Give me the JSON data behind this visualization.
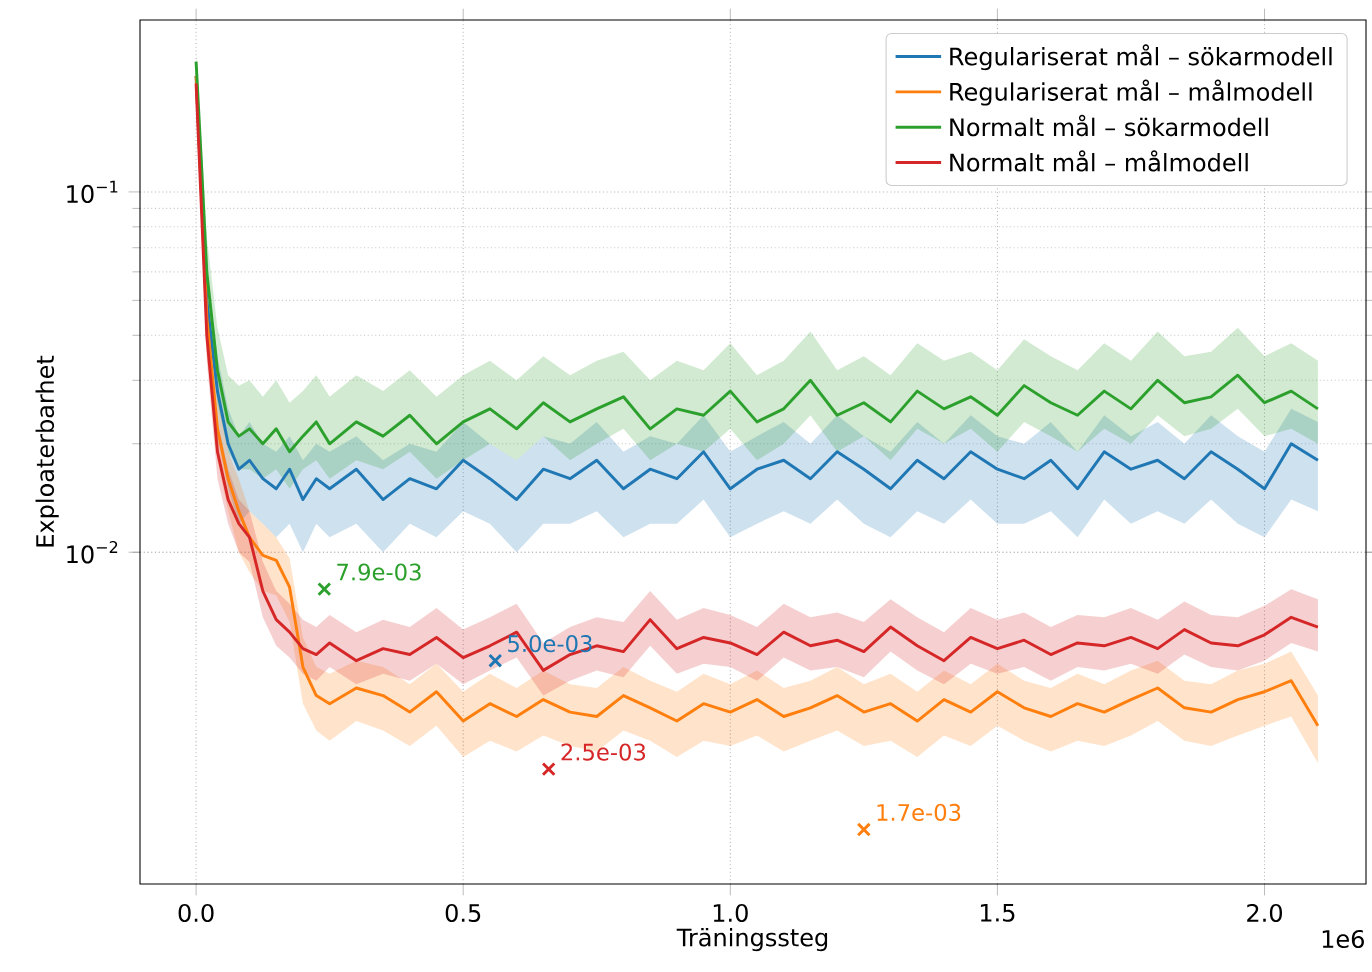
{
  "chart_data": {
    "type": "line",
    "xlabel": "Träningssteg",
    "ylabel": "Exploaterbarhet",
    "log": "y",
    "grid": true,
    "legend": "top right",
    "xlim": [
      -0.105,
      2.19
    ],
    "ylim": [
      0.0012,
      0.3
    ],
    "xticks": [
      {
        "value": 0,
        "label": "0.0"
      },
      {
        "value": 0.5,
        "label": "0.5"
      },
      {
        "value": 1.0,
        "label": "1.0"
      },
      {
        "value": 1.5,
        "label": "1.5"
      },
      {
        "value": 2.0,
        "label": "2.0"
      }
    ],
    "yticks": [
      {
        "value": 0.01,
        "label": "10$^{−2}$"
      },
      {
        "value": 0.1,
        "label": "10$^{−1}$"
      }
    ],
    "x": [
      0,
      0.01,
      0.02,
      0.04,
      0.06,
      0.08,
      0.1,
      0.125,
      0.15,
      0.175,
      0.2,
      0.225,
      0.25,
      0.3,
      0.35,
      0.4,
      0.45,
      0.5,
      0.55,
      0.6,
      0.65,
      0.7,
      0.75,
      0.8,
      0.85,
      0.9,
      0.95,
      1.0,
      1.05,
      1.1,
      1.15,
      1.2,
      1.25,
      1.3,
      1.35,
      1.4,
      1.45,
      1.5,
      1.55,
      1.6,
      1.65,
      1.7,
      1.75,
      1.8,
      1.85,
      1.9,
      1.95,
      2.0,
      2.05,
      2.1
    ],
    "series": [
      {
        "name": "Regulariserat mål – sökarmodell",
        "color": "#1f77b4",
        "values": [
          0.21,
          0.1,
          0.05,
          0.028,
          0.02,
          0.017,
          0.018,
          0.016,
          0.015,
          0.017,
          0.014,
          0.016,
          0.015,
          0.017,
          0.014,
          0.016,
          0.015,
          0.018,
          0.016,
          0.014,
          0.017,
          0.016,
          0.018,
          0.015,
          0.017,
          0.016,
          0.019,
          0.015,
          0.017,
          0.018,
          0.016,
          0.019,
          0.017,
          0.015,
          0.018,
          0.016,
          0.019,
          0.017,
          0.016,
          0.018,
          0.015,
          0.019,
          0.017,
          0.018,
          0.016,
          0.019,
          0.017,
          0.015,
          0.02,
          0.018
        ],
        "lower": [
          0.2,
          0.085,
          0.04,
          0.021,
          0.015,
          0.012,
          0.013,
          0.012,
          0.011,
          0.012,
          0.01,
          0.012,
          0.011,
          0.012,
          0.01,
          0.012,
          0.011,
          0.013,
          0.012,
          0.01,
          0.012,
          0.012,
          0.013,
          0.011,
          0.012,
          0.012,
          0.014,
          0.011,
          0.012,
          0.013,
          0.012,
          0.014,
          0.012,
          0.011,
          0.013,
          0.012,
          0.014,
          0.012,
          0.012,
          0.013,
          0.011,
          0.014,
          0.012,
          0.013,
          0.012,
          0.014,
          0.012,
          0.011,
          0.014,
          0.013
        ],
        "upper": [
          0.22,
          0.12,
          0.062,
          0.035,
          0.025,
          0.021,
          0.023,
          0.02,
          0.019,
          0.021,
          0.018,
          0.02,
          0.019,
          0.021,
          0.018,
          0.02,
          0.019,
          0.023,
          0.02,
          0.018,
          0.021,
          0.02,
          0.023,
          0.019,
          0.021,
          0.02,
          0.024,
          0.019,
          0.021,
          0.023,
          0.02,
          0.024,
          0.021,
          0.019,
          0.023,
          0.02,
          0.024,
          0.021,
          0.02,
          0.023,
          0.019,
          0.024,
          0.021,
          0.023,
          0.02,
          0.024,
          0.021,
          0.019,
          0.025,
          0.023
        ]
      },
      {
        "name": "Regulariserat mål – målmodell",
        "color": "#ff7f0e",
        "values": [
          0.21,
          0.1,
          0.045,
          0.022,
          0.016,
          0.013,
          0.011,
          0.0098,
          0.0095,
          0.008,
          0.0048,
          0.004,
          0.0038,
          0.0042,
          0.004,
          0.0036,
          0.0041,
          0.0034,
          0.0038,
          0.0035,
          0.0039,
          0.0036,
          0.0035,
          0.004,
          0.0037,
          0.0034,
          0.0038,
          0.0036,
          0.0039,
          0.0035,
          0.0037,
          0.004,
          0.0036,
          0.0038,
          0.0034,
          0.0039,
          0.0036,
          0.0041,
          0.0037,
          0.0035,
          0.0038,
          0.0036,
          0.0039,
          0.0042,
          0.0037,
          0.0036,
          0.0039,
          0.0041,
          0.0044,
          0.0033
        ],
        "lower": [
          0.2,
          0.085,
          0.036,
          0.018,
          0.013,
          0.01,
          0.0088,
          0.0078,
          0.0076,
          0.0064,
          0.0038,
          0.0032,
          0.003,
          0.0034,
          0.0032,
          0.0029,
          0.0033,
          0.0027,
          0.003,
          0.0028,
          0.0031,
          0.0029,
          0.0028,
          0.0032,
          0.003,
          0.0027,
          0.003,
          0.0029,
          0.0031,
          0.0028,
          0.003,
          0.0032,
          0.0029,
          0.003,
          0.0027,
          0.0031,
          0.0029,
          0.0033,
          0.003,
          0.0028,
          0.003,
          0.0029,
          0.0031,
          0.0034,
          0.003,
          0.0029,
          0.0031,
          0.0033,
          0.0035,
          0.0026
        ],
        "upper": [
          0.22,
          0.12,
          0.055,
          0.027,
          0.019,
          0.016,
          0.013,
          0.012,
          0.011,
          0.0096,
          0.0058,
          0.0048,
          0.0046,
          0.005,
          0.0048,
          0.0043,
          0.0049,
          0.0041,
          0.0046,
          0.0042,
          0.0047,
          0.0043,
          0.0042,
          0.0048,
          0.0044,
          0.0041,
          0.0046,
          0.0043,
          0.0047,
          0.0042,
          0.0044,
          0.0048,
          0.0043,
          0.0046,
          0.0041,
          0.0047,
          0.0043,
          0.0049,
          0.0044,
          0.0042,
          0.0046,
          0.0043,
          0.0047,
          0.005,
          0.0044,
          0.0043,
          0.0047,
          0.0049,
          0.0053,
          0.004
        ]
      },
      {
        "name": "Normalt mål – sökarmodell",
        "color": "#2ca02c",
        "values": [
          0.23,
          0.12,
          0.06,
          0.032,
          0.023,
          0.021,
          0.022,
          0.02,
          0.022,
          0.019,
          0.021,
          0.023,
          0.02,
          0.023,
          0.021,
          0.024,
          0.02,
          0.023,
          0.025,
          0.022,
          0.026,
          0.023,
          0.025,
          0.027,
          0.022,
          0.025,
          0.024,
          0.028,
          0.023,
          0.025,
          0.03,
          0.024,
          0.026,
          0.023,
          0.028,
          0.025,
          0.027,
          0.024,
          0.029,
          0.026,
          0.024,
          0.028,
          0.025,
          0.03,
          0.026,
          0.027,
          0.031,
          0.026,
          0.028,
          0.025
        ],
        "lower": [
          0.22,
          0.11,
          0.05,
          0.026,
          0.019,
          0.017,
          0.017,
          0.016,
          0.017,
          0.015,
          0.017,
          0.018,
          0.016,
          0.018,
          0.017,
          0.019,
          0.016,
          0.018,
          0.02,
          0.018,
          0.021,
          0.018,
          0.02,
          0.022,
          0.018,
          0.02,
          0.019,
          0.022,
          0.018,
          0.02,
          0.024,
          0.019,
          0.021,
          0.018,
          0.022,
          0.02,
          0.022,
          0.019,
          0.023,
          0.021,
          0.019,
          0.022,
          0.02,
          0.024,
          0.021,
          0.022,
          0.025,
          0.021,
          0.022,
          0.02
        ],
        "upper": [
          0.24,
          0.14,
          0.075,
          0.042,
          0.031,
          0.029,
          0.03,
          0.027,
          0.03,
          0.026,
          0.028,
          0.031,
          0.027,
          0.031,
          0.028,
          0.032,
          0.027,
          0.031,
          0.034,
          0.03,
          0.035,
          0.031,
          0.034,
          0.036,
          0.03,
          0.034,
          0.032,
          0.038,
          0.031,
          0.034,
          0.041,
          0.032,
          0.035,
          0.031,
          0.038,
          0.034,
          0.036,
          0.032,
          0.039,
          0.035,
          0.032,
          0.038,
          0.034,
          0.041,
          0.035,
          0.036,
          0.042,
          0.035,
          0.038,
          0.034
        ]
      },
      {
        "name": "Normalt mål – målmodell",
        "color": "#d62728",
        "values": [
          0.2,
          0.09,
          0.04,
          0.019,
          0.014,
          0.012,
          0.011,
          0.0078,
          0.0065,
          0.006,
          0.0054,
          0.0052,
          0.0056,
          0.005,
          0.0054,
          0.0052,
          0.0058,
          0.0051,
          0.0055,
          0.006,
          0.0047,
          0.0052,
          0.0055,
          0.0053,
          0.0065,
          0.0054,
          0.0058,
          0.0056,
          0.0052,
          0.006,
          0.0055,
          0.0057,
          0.0053,
          0.0062,
          0.0055,
          0.005,
          0.0058,
          0.0054,
          0.0057,
          0.0052,
          0.0056,
          0.0055,
          0.0058,
          0.0054,
          0.0061,
          0.0056,
          0.0055,
          0.0059,
          0.0066,
          0.0062
        ],
        "lower": [
          0.19,
          0.08,
          0.034,
          0.016,
          0.012,
          0.01,
          0.0094,
          0.0066,
          0.0055,
          0.0051,
          0.0046,
          0.0044,
          0.0048,
          0.0043,
          0.0046,
          0.0044,
          0.0049,
          0.0043,
          0.0047,
          0.0051,
          0.004,
          0.0044,
          0.0047,
          0.0045,
          0.0055,
          0.0046,
          0.0049,
          0.0048,
          0.0044,
          0.0051,
          0.0047,
          0.0048,
          0.0045,
          0.0053,
          0.0047,
          0.0043,
          0.0049,
          0.0046,
          0.0048,
          0.0044,
          0.0048,
          0.0047,
          0.0049,
          0.0046,
          0.0052,
          0.0048,
          0.0047,
          0.005,
          0.0056,
          0.0053
        ],
        "upper": [
          0.21,
          0.1,
          0.048,
          0.023,
          0.017,
          0.014,
          0.013,
          0.0094,
          0.0078,
          0.0072,
          0.0065,
          0.0062,
          0.0067,
          0.006,
          0.0065,
          0.0062,
          0.007,
          0.0061,
          0.0066,
          0.0072,
          0.0056,
          0.0062,
          0.0066,
          0.0064,
          0.0078,
          0.0065,
          0.007,
          0.0067,
          0.0062,
          0.0072,
          0.0066,
          0.0068,
          0.0064,
          0.0074,
          0.0066,
          0.006,
          0.007,
          0.0065,
          0.0068,
          0.0062,
          0.0067,
          0.0066,
          0.007,
          0.0065,
          0.0073,
          0.0067,
          0.0066,
          0.0071,
          0.0079,
          0.0074
        ]
      },
      {
        "type": "scatter",
        "marker": "cross",
        "color": "#2ca02c",
        "x": [
          0.24
        ],
        "values": [
          0.0079
        ]
      },
      {
        "type": "scatter",
        "marker": "cross",
        "color": "#1f77b4",
        "x": [
          0.56
        ],
        "values": [
          0.005
        ]
      },
      {
        "type": "scatter",
        "marker": "cross",
        "color": "#d62728",
        "x": [
          0.66
        ],
        "values": [
          0.0025
        ]
      },
      {
        "type": "scatter",
        "marker": "cross",
        "color": "#ff7f0e",
        "x": [
          1.25
        ],
        "values": [
          0.0017
        ]
      }
    ],
    "annotations": [
      {
        "text": "7.9e-03",
        "x": 0.24,
        "y": 0.0079
      },
      {
        "text": "5.0e-03",
        "x": 0.56,
        "y": 0.005
      },
      {
        "text": "2.5e-03",
        "x": 0.66,
        "y": 0.0025
      },
      {
        "text": "1.7e-03",
        "x": 1.25,
        "y": 0.0017
      },
      "1e6"
    ]
  }
}
